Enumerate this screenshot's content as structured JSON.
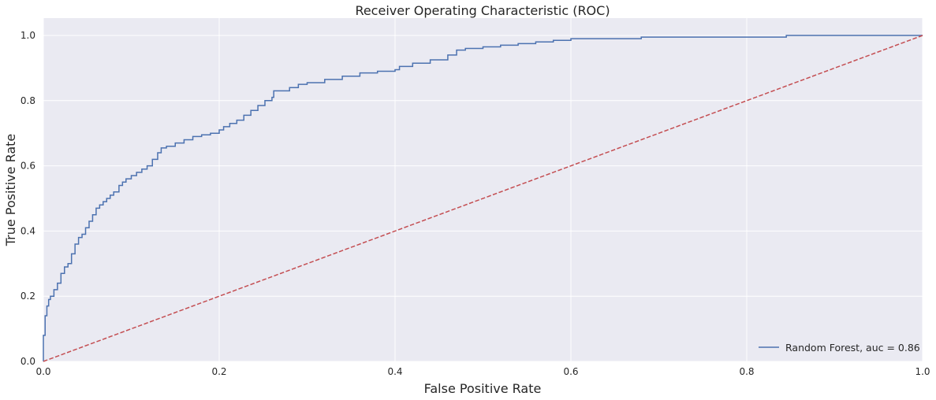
{
  "chart_data": {
    "type": "line",
    "title": "Receiver Operating Characteristic (ROC)",
    "xlabel": "False Positive Rate",
    "ylabel": "True Positive Rate",
    "xlim": [
      0,
      1.0
    ],
    "ylim": [
      0,
      1.0
    ],
    "x_ticks": [
      "0.0",
      "0.2",
      "0.4",
      "0.6",
      "0.8",
      "1.0"
    ],
    "y_ticks": [
      "0.0",
      "0.2",
      "0.4",
      "0.6",
      "0.8",
      "1.0"
    ],
    "grid": true,
    "legend_position": "lower-right",
    "colors": {
      "background": "#eaeaf2",
      "grid": "#ffffff",
      "roc": "#4c72b0",
      "diagonal": "#c44e52"
    },
    "series": [
      {
        "name": "Random Forest, auc = 0.86",
        "style": "solid",
        "x": [
          0.0,
          0.0,
          0.002,
          0.002,
          0.004,
          0.006,
          0.008,
          0.012,
          0.016,
          0.02,
          0.024,
          0.028,
          0.032,
          0.036,
          0.04,
          0.044,
          0.048,
          0.052,
          0.056,
          0.06,
          0.064,
          0.068,
          0.072,
          0.076,
          0.08,
          0.086,
          0.09,
          0.094,
          0.1,
          0.106,
          0.112,
          0.118,
          0.124,
          0.13,
          0.134,
          0.14,
          0.15,
          0.16,
          0.17,
          0.18,
          0.19,
          0.2,
          0.205,
          0.212,
          0.22,
          0.228,
          0.236,
          0.244,
          0.252,
          0.26,
          0.262,
          0.27,
          0.28,
          0.29,
          0.3,
          0.32,
          0.34,
          0.36,
          0.38,
          0.4,
          0.405,
          0.42,
          0.44,
          0.46,
          0.47,
          0.48,
          0.5,
          0.52,
          0.54,
          0.56,
          0.58,
          0.6,
          0.62,
          0.64,
          0.68,
          0.7,
          0.75,
          0.8,
          0.845,
          0.9,
          0.95,
          1.0
        ],
        "y": [
          0.0,
          0.08,
          0.085,
          0.14,
          0.17,
          0.19,
          0.2,
          0.22,
          0.24,
          0.27,
          0.29,
          0.3,
          0.33,
          0.36,
          0.38,
          0.39,
          0.41,
          0.43,
          0.45,
          0.47,
          0.48,
          0.49,
          0.5,
          0.51,
          0.52,
          0.54,
          0.55,
          0.56,
          0.57,
          0.58,
          0.59,
          0.6,
          0.62,
          0.64,
          0.655,
          0.66,
          0.67,
          0.68,
          0.69,
          0.695,
          0.7,
          0.71,
          0.72,
          0.73,
          0.74,
          0.755,
          0.77,
          0.785,
          0.8,
          0.81,
          0.83,
          0.83,
          0.84,
          0.85,
          0.855,
          0.865,
          0.875,
          0.885,
          0.89,
          0.895,
          0.905,
          0.915,
          0.925,
          0.94,
          0.955,
          0.96,
          0.965,
          0.97,
          0.975,
          0.98,
          0.985,
          0.99,
          0.99,
          0.99,
          0.995,
          0.995,
          0.995,
          0.995,
          1.0,
          1.0,
          1.0,
          1.0
        ]
      },
      {
        "style": "dashed",
        "x": [
          0,
          1
        ],
        "y": [
          0,
          1
        ]
      }
    ]
  }
}
